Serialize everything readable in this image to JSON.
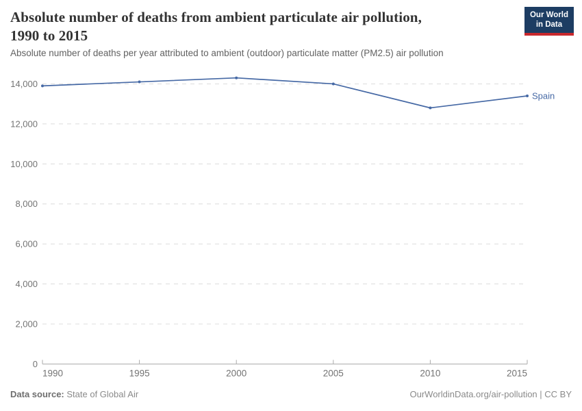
{
  "header": {
    "title_line1": "Absolute number of deaths from ambient particulate air pollution,",
    "title_line2": "1990 to 2015",
    "subtitle": "Absolute number of deaths per year attributed to ambient (outdoor) particulate matter (PM2.5) air pollution"
  },
  "logo": {
    "line1": "Our World",
    "line2": "in Data",
    "bg_color": "#1d3d63",
    "bar_color": "#c8282d"
  },
  "chart_data": {
    "type": "line",
    "title": "Absolute number of deaths from ambient particulate air pollution, 1990 to 2015",
    "xlabel": "",
    "ylabel": "",
    "xlim": [
      1990,
      2015
    ],
    "ylim": [
      0,
      14600
    ],
    "grid": "horizontal-dashed",
    "legend_position": "end-of-line",
    "xticks": [
      1990,
      1995,
      2000,
      2005,
      2010,
      2015
    ],
    "xtick_labels": [
      "1990",
      "1995",
      "2000",
      "2005",
      "2010",
      "2015"
    ],
    "yticks": [
      0,
      2000,
      4000,
      6000,
      8000,
      10000,
      12000,
      14000
    ],
    "ytick_labels": [
      "0",
      "2,000",
      "4,000",
      "6,000",
      "8,000",
      "10,000",
      "12,000",
      "14,000"
    ],
    "series": [
      {
        "name": "Spain",
        "color": "#4669a5",
        "x": [
          1990,
          1995,
          2000,
          2005,
          2010,
          2015
        ],
        "values": [
          13900,
          14100,
          14300,
          14000,
          12800,
          13400
        ]
      }
    ]
  },
  "footer": {
    "datasource_label": "Data source:",
    "datasource_value": "State of Global Air",
    "right_text": "OurWorldinData.org/air-pollution | CC BY"
  }
}
